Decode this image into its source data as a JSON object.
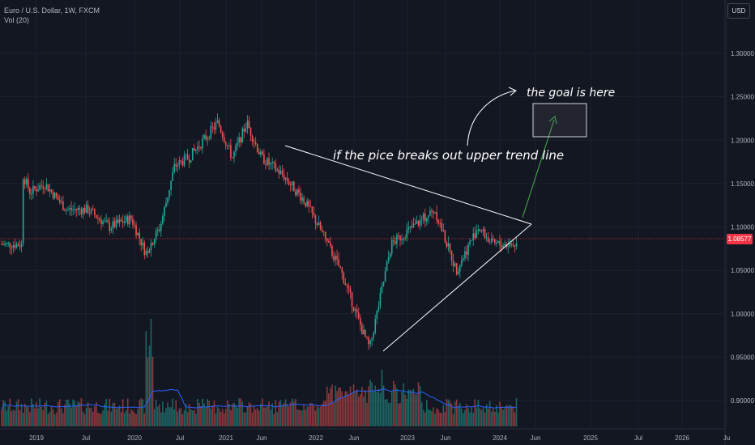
{
  "legend": {
    "symbol": "Euro / U.S. Dollar, 1W, FXCM",
    "volume": "Vol (20)"
  },
  "currency_button": "USD",
  "price_axis": {
    "ticks": [
      "1.30000",
      "1.25000",
      "1.20000",
      "1.15000",
      "1.10000",
      "1.05000",
      "1.00000",
      "0.95000",
      "0.90000"
    ],
    "current_price": "1.08577"
  },
  "time_axis": {
    "ticks": [
      "2019",
      "Jul",
      "2020",
      "Jul",
      "2021",
      "Jun",
      "2022",
      "Jun",
      "2023",
      "Jun",
      "2024",
      "Jun",
      "2025",
      "Jul",
      "2026",
      "Ju"
    ]
  },
  "annotations": {
    "breakout_note": "if the pice breaks out upper trend line",
    "goal_note": "the goal is here"
  },
  "colors": {
    "background": "#131722",
    "up_candle": "#26a69a",
    "down_candle": "#ef5350",
    "price_line": "#f23645",
    "volume_ma": "#2962ff",
    "arrow": "#4caf50",
    "drawing": "#ffffff"
  },
  "chart_data": {
    "type": "candlestick",
    "symbol": "EURUSD",
    "interval": "1W",
    "price_range": [
      0.88,
      1.33
    ],
    "last_price": 1.08577,
    "price_path": [
      [
        "2018-10",
        1.16
      ],
      [
        "2018-11",
        1.14
      ],
      [
        "2019-01",
        1.15
      ],
      [
        "2019-04",
        1.12
      ],
      [
        "2019-07",
        1.12
      ],
      [
        "2019-10",
        1.1
      ],
      [
        "2020-01",
        1.11
      ],
      [
        "2020-03",
        1.07
      ],
      [
        "2020-05",
        1.1
      ],
      [
        "2020-07",
        1.17
      ],
      [
        "2020-09",
        1.18
      ],
      [
        "2021-01",
        1.22
      ],
      [
        "2021-03",
        1.18
      ],
      [
        "2021-05",
        1.22
      ],
      [
        "2021-07",
        1.18
      ],
      [
        "2021-10",
        1.16
      ],
      [
        "2022-01",
        1.13
      ],
      [
        "2022-03",
        1.1
      ],
      [
        "2022-06",
        1.05
      ],
      [
        "2022-09",
        0.98
      ],
      [
        "2022-10",
        0.96
      ],
      [
        "2023-01",
        1.08
      ],
      [
        "2023-04",
        1.1
      ],
      [
        "2023-07",
        1.12
      ],
      [
        "2023-10",
        1.05
      ],
      [
        "2024-01",
        1.1
      ],
      [
        "2024-03",
        1.08
      ]
    ],
    "trend_lines": [
      {
        "from": [
          "2021-09",
          1.19
        ],
        "to": [
          "2024-05",
          1.1
        ]
      },
      {
        "from": [
          "2022-09",
          0.96
        ],
        "to": [
          "2024-05",
          1.1
        ]
      }
    ],
    "target_zone": {
      "price_low": 1.2,
      "price_high": 1.23
    },
    "volume_indicator": "Vol (20)"
  }
}
